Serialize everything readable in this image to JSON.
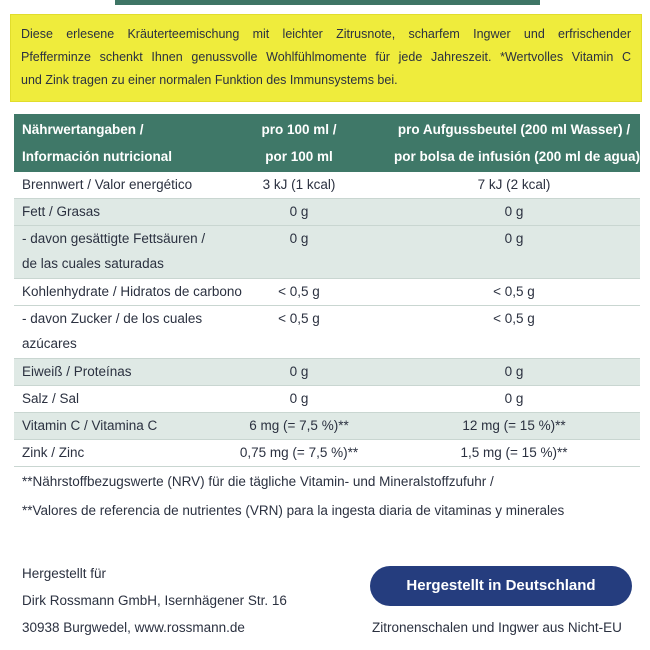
{
  "intro": [
    "Diese erlesene Kräuterteemischung mit leichter Zitrusnote, scharfem Ingwer und erfrischender",
    "Pfefferminze schenkt Ihnen genussvolle Wohlfühlmomente für jede Jahreszeit. *Wertvolles Vitamin C",
    "und Zink tragen zu einer normalen Funktion des Immunsystems bei."
  ],
  "table": {
    "header": [
      [
        "Nährwertangaben /",
        "Información nutricional"
      ],
      [
        "pro 100 ml /",
        "por 100 ml"
      ],
      [
        "pro Aufgussbeutel (200 ml Wasser) /",
        "por bolsa de infusión (200 ml de agua)"
      ]
    ],
    "rows": [
      {
        "label": [
          "Brennwert / Valor energético"
        ],
        "per_100ml": "3 kJ (1 kcal)",
        "per_bag": "7 kJ (2 kcal)"
      },
      {
        "label": [
          "Fett / Grasas"
        ],
        "per_100ml": "0 g",
        "per_bag": "0 g"
      },
      {
        "label": [
          "- davon gesättigte Fettsäuren /",
          "de las cuales saturadas"
        ],
        "per_100ml": "0 g",
        "per_bag": "0 g"
      },
      {
        "label": [
          "Kohlenhydrate / Hidratos de carbono"
        ],
        "per_100ml": "< 0,5 g",
        "per_bag": "< 0,5 g"
      },
      {
        "label": [
          "- davon Zucker / de los cuales",
          "azúcares"
        ],
        "per_100ml": "< 0,5 g",
        "per_bag": "< 0,5 g"
      },
      {
        "label": [
          "Eiweiß / Proteínas"
        ],
        "per_100ml": "0 g",
        "per_bag": "0 g"
      },
      {
        "label": [
          "Salz / Sal"
        ],
        "per_100ml": "0 g",
        "per_bag": "0 g"
      },
      {
        "label": [
          "Vitamin C / Vitamina C"
        ],
        "per_100ml": "6 mg (= 7,5 %)**",
        "per_bag": "12 mg (= 15 %)**"
      },
      {
        "label": [
          "Zink / Zinc"
        ],
        "per_100ml": "0,75 mg (= 7,5 %)**",
        "per_bag": "1,5 mg (= 15 %)**"
      }
    ]
  },
  "footnotes": [
    "**Nährstoffbezugswerte (NRV) für die tägliche Vitamin- und Mineralstoffzufuhr /",
    "**Valores de referencia de nutrientes (VRN) para la ingesta diaria de vitaminas y minerales"
  ],
  "manufacturer": [
    "Hergestellt für",
    "Dirk Rossmann GmbH, Isernhägener Str. 16",
    "30938 Burgwedel, www.rossmann.de"
  ],
  "badge": "Hergestellt in Deutschland",
  "origin": "Zitronenschalen und Ingwer aus Nicht-EU"
}
